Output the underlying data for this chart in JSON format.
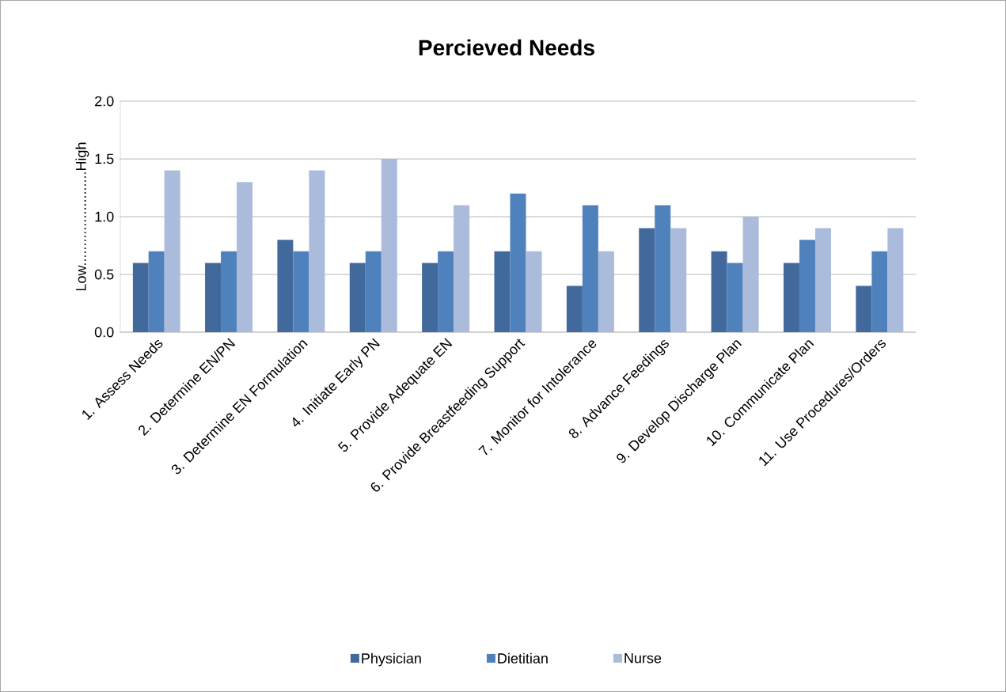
{
  "chart_data": {
    "type": "bar",
    "title": "Percieved Needs",
    "ylabel": "Low........................High",
    "categories": [
      "1. Assess Needs",
      "2. Determine EN/PN",
      "3. Determine EN Formulation",
      "4. Initiate Early PN",
      "5. Provide Adequate EN",
      "6. Provide Breastfeeding Support",
      "7. Monitor for Intolerance",
      "8. Advance Feedings",
      "9. Develop Discharge Plan",
      "10. Communicate Plan",
      "11. Use Procedures/Orders"
    ],
    "series": [
      {
        "name": "Physician",
        "color": "#41699b",
        "values": [
          0.6,
          0.6,
          0.8,
          0.6,
          0.6,
          0.7,
          0.4,
          0.9,
          0.7,
          0.6,
          0.4
        ]
      },
      {
        "name": "Dietitian",
        "color": "#4f81bd",
        "values": [
          0.7,
          0.7,
          0.7,
          0.7,
          0.7,
          1.2,
          1.1,
          1.1,
          0.6,
          0.8,
          0.7
        ]
      },
      {
        "name": "Nurse",
        "color": "#aabbdb",
        "values": [
          1.4,
          1.3,
          1.4,
          1.5,
          1.1,
          0.7,
          0.7,
          0.9,
          1.0,
          0.9,
          0.9
        ]
      }
    ],
    "ylim": [
      0,
      2
    ],
    "yticks": [
      {
        "value": 0,
        "label": "0.0"
      },
      {
        "value": 0.5,
        "label": "0.5"
      },
      {
        "value": 1,
        "label": "1.0"
      },
      {
        "value": 1.5,
        "label": "1.5"
      },
      {
        "value": 2,
        "label": "2.0"
      }
    ],
    "grid": "y",
    "legend": "bottom"
  }
}
